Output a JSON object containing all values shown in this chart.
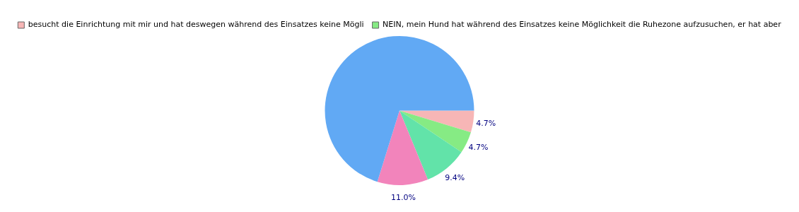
{
  "chart_data": {
    "type": "pie",
    "categories": [
      "besucht die Einrichtung mit mir und hat deswegen während des Einsatzes keine Mögli",
      "NEIN, mein Hund hat während des Einsatzes keine Möglichkeit die Ruhezone aufzusuchen, er hat aber",
      null,
      null,
      null
    ],
    "values": [
      4.7,
      4.7,
      9.4,
      11.0,
      70.2
    ],
    "colors": [
      "#f7b6b6",
      "#86eb84",
      "#62e3a9",
      "#f284bb",
      "#61a9f4"
    ],
    "value_labels": [
      "4.7%",
      "4.7%",
      "9.4%",
      "11.0%",
      null
    ],
    "legend": "top"
  }
}
